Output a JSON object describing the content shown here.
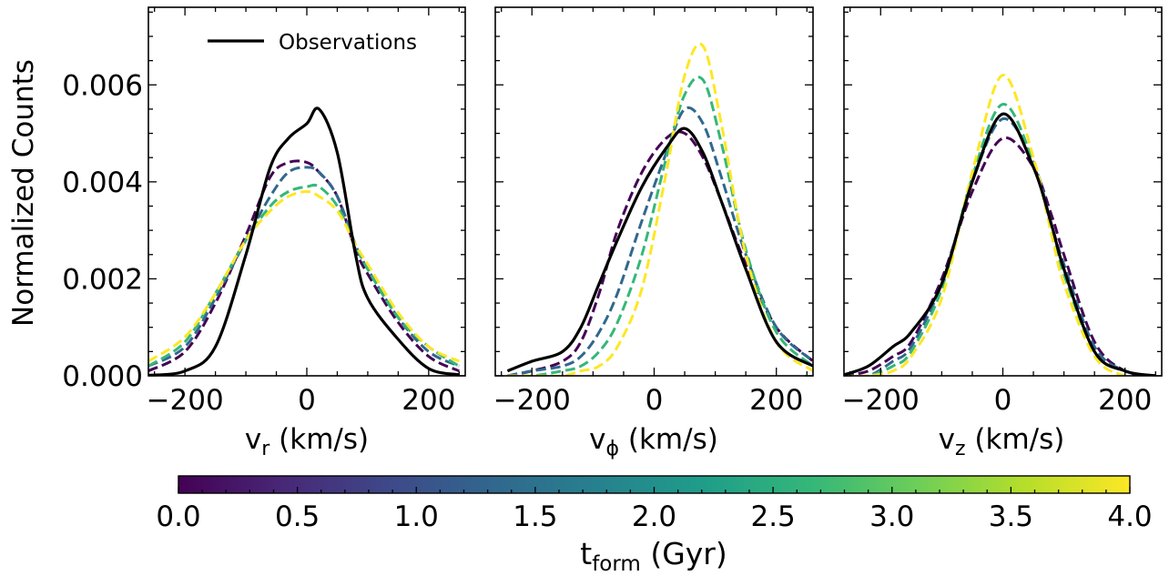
{
  "figure": {
    "ylabel": "Normalized Counts",
    "legend_label": "Observations",
    "colorbar_label": "t",
    "colorbar_label_sub": "form",
    "colorbar_label_unit": " (Gyr)",
    "colorbar_ticks": [
      "0.0",
      "0.5",
      "1.0",
      "1.5",
      "2.0",
      "2.5",
      "3.0",
      "3.5",
      "4.0"
    ],
    "colorbar_range": [
      0,
      4
    ],
    "colormap": "viridis",
    "colormap_stops": [
      "#440154",
      "#482878",
      "#3e4989",
      "#31688e",
      "#26828e",
      "#1f9e89",
      "#35b779",
      "#6ece58",
      "#b5de2b",
      "#fde725"
    ]
  },
  "chart_data": [
    {
      "type": "line",
      "panel": "v_r",
      "xlabel": "v",
      "xlabel_sub": "r",
      "xlabel_unit": " (km/s)",
      "xlim": [
        -260,
        260
      ],
      "ylim": [
        0,
        0.0076
      ],
      "xticks": [
        "−200",
        "0",
        "200"
      ],
      "yticks": [
        "0.000",
        "0.002",
        "0.004",
        "0.006"
      ],
      "x": [
        -260,
        -200,
        -150,
        -100,
        -60,
        -30,
        0,
        20,
        50,
        80,
        100,
        150,
        200,
        250
      ],
      "series": [
        {
          "name": "Observations",
          "style": "solid",
          "color": "#000000",
          "values": [
            1e-05,
            0.0001,
            0.0006,
            0.0025,
            0.0043,
            0.0049,
            0.0052,
            0.0055,
            0.0046,
            0.0025,
            0.0016,
            0.00075,
            0.00015,
            2e-05
          ]
        },
        {
          "t_form": 0.0,
          "style": "dashed",
          "color": "#440154",
          "values": [
            0.0001,
            0.0005,
            0.0015,
            0.0029,
            0.0041,
            0.0044,
            0.0044,
            0.0042,
            0.0037,
            0.0026,
            0.0021,
            0.0011,
            0.0004,
            0.0001
          ]
        },
        {
          "t_form": 1.0,
          "style": "dashed",
          "color": "#31688e",
          "values": [
            0.0002,
            0.0006,
            0.0016,
            0.0028,
            0.0037,
            0.0042,
            0.0043,
            0.0042,
            0.0037,
            0.0027,
            0.0022,
            0.0012,
            0.0005,
            0.0002
          ]
        },
        {
          "t_form": 2.5,
          "style": "dashed",
          "color": "#35b779",
          "values": [
            0.0002,
            0.0007,
            0.0017,
            0.0028,
            0.0035,
            0.0038,
            0.0039,
            0.0039,
            0.0035,
            0.0027,
            0.0022,
            0.0012,
            0.0006,
            0.0002
          ]
        },
        {
          "t_form": 4.0,
          "style": "dashed",
          "color": "#fde725",
          "values": [
            0.0003,
            0.0008,
            0.0017,
            0.0028,
            0.0034,
            0.0037,
            0.0038,
            0.0037,
            0.0034,
            0.0027,
            0.0023,
            0.0013,
            0.0006,
            0.0003
          ]
        }
      ]
    },
    {
      "type": "line",
      "panel": "v_phi",
      "xlabel": "v",
      "xlabel_sub": "ϕ",
      "xlabel_unit": " (km/s)",
      "xlim": [
        -260,
        260
      ],
      "ylim": [
        0,
        0.0076
      ],
      "xticks": [
        "−200",
        "0",
        "200"
      ],
      "yticks": [],
      "x": [
        -240,
        -200,
        -150,
        -120,
        -90,
        -60,
        -20,
        20,
        50,
        80,
        110,
        150,
        200,
        260
      ],
      "series": [
        {
          "name": "Observations",
          "style": "solid",
          "color": "#000000",
          "values": [
            0.0001,
            0.0003,
            0.0005,
            0.001,
            0.0019,
            0.0028,
            0.0039,
            0.0047,
            0.0051,
            0.0046,
            0.0036,
            0.0022,
            0.0007,
            0.0002
          ]
        },
        {
          "t_form": 0.0,
          "style": "dashed",
          "color": "#440154",
          "values": [
            0.0,
            0.0001,
            0.0003,
            0.0007,
            0.0017,
            0.003,
            0.0042,
            0.0049,
            0.005,
            0.0045,
            0.0036,
            0.0023,
            0.001,
            0.0003
          ]
        },
        {
          "t_form": 1.5,
          "style": "dashed",
          "color": "#31688e",
          "values": [
            0.0,
            0.0001,
            0.0002,
            0.0004,
            0.0009,
            0.0017,
            0.0032,
            0.0046,
            0.0055,
            0.0052,
            0.0041,
            0.0025,
            0.001,
            0.0003
          ]
        },
        {
          "t_form": 2.5,
          "style": "dashed",
          "color": "#35b779",
          "values": [
            0.0,
            0.0,
            0.0001,
            0.0002,
            0.0005,
            0.0011,
            0.0025,
            0.0045,
            0.0058,
            0.0061,
            0.0048,
            0.0026,
            0.0009,
            0.0002
          ]
        },
        {
          "t_form": 4.0,
          "style": "dashed",
          "color": "#fde725",
          "values": [
            0.0,
            0.0,
            0.0,
            0.0001,
            0.0002,
            0.0006,
            0.0018,
            0.0042,
            0.0062,
            0.0068,
            0.0052,
            0.0025,
            0.0007,
            0.0001
          ]
        }
      ]
    },
    {
      "type": "line",
      "panel": "v_z",
      "xlabel": "v",
      "xlabel_sub": "z",
      "xlabel_unit": " (km/s)",
      "xlim": [
        -260,
        260
      ],
      "ylim": [
        0,
        0.0076
      ],
      "xticks": [
        "−200",
        "0",
        "200"
      ],
      "yticks": [],
      "x": [
        -260,
        -220,
        -180,
        -150,
        -100,
        -50,
        0,
        50,
        80,
        100,
        150,
        200,
        250
      ],
      "series": [
        {
          "name": "Observations",
          "style": "solid",
          "color": "#000000",
          "values": [
            2e-05,
            0.0002,
            0.0006,
            0.0009,
            0.0019,
            0.004,
            0.0054,
            0.0043,
            0.0031,
            0.0022,
            0.0005,
            0.0001,
            0.0
          ]
        },
        {
          "t_form": 0.0,
          "style": "dashed",
          "color": "#440154",
          "values": [
            0.0,
            0.0001,
            0.0004,
            0.0007,
            0.002,
            0.0038,
            0.0049,
            0.0043,
            0.0033,
            0.0025,
            0.0007,
            0.0001,
            0.0
          ]
        },
        {
          "t_form": 1.5,
          "style": "dashed",
          "color": "#31688e",
          "values": [
            0.0,
            0.0,
            0.0003,
            0.0006,
            0.0019,
            0.004,
            0.0053,
            0.0044,
            0.0031,
            0.0023,
            0.0006,
            0.0001,
            0.0
          ]
        },
        {
          "t_form": 2.5,
          "style": "dashed",
          "color": "#35b779",
          "values": [
            0.0,
            0.0,
            0.0002,
            0.0005,
            0.0018,
            0.0041,
            0.0056,
            0.0044,
            0.003,
            0.0021,
            0.0005,
            0.0001,
            0.0
          ]
        },
        {
          "t_form": 4.0,
          "style": "dashed",
          "color": "#fde725",
          "values": [
            0.0,
            0.0,
            0.0001,
            0.0004,
            0.0016,
            0.0042,
            0.0062,
            0.0045,
            0.0029,
            0.0019,
            0.0004,
            0.0,
            0.0
          ]
        }
      ]
    }
  ]
}
